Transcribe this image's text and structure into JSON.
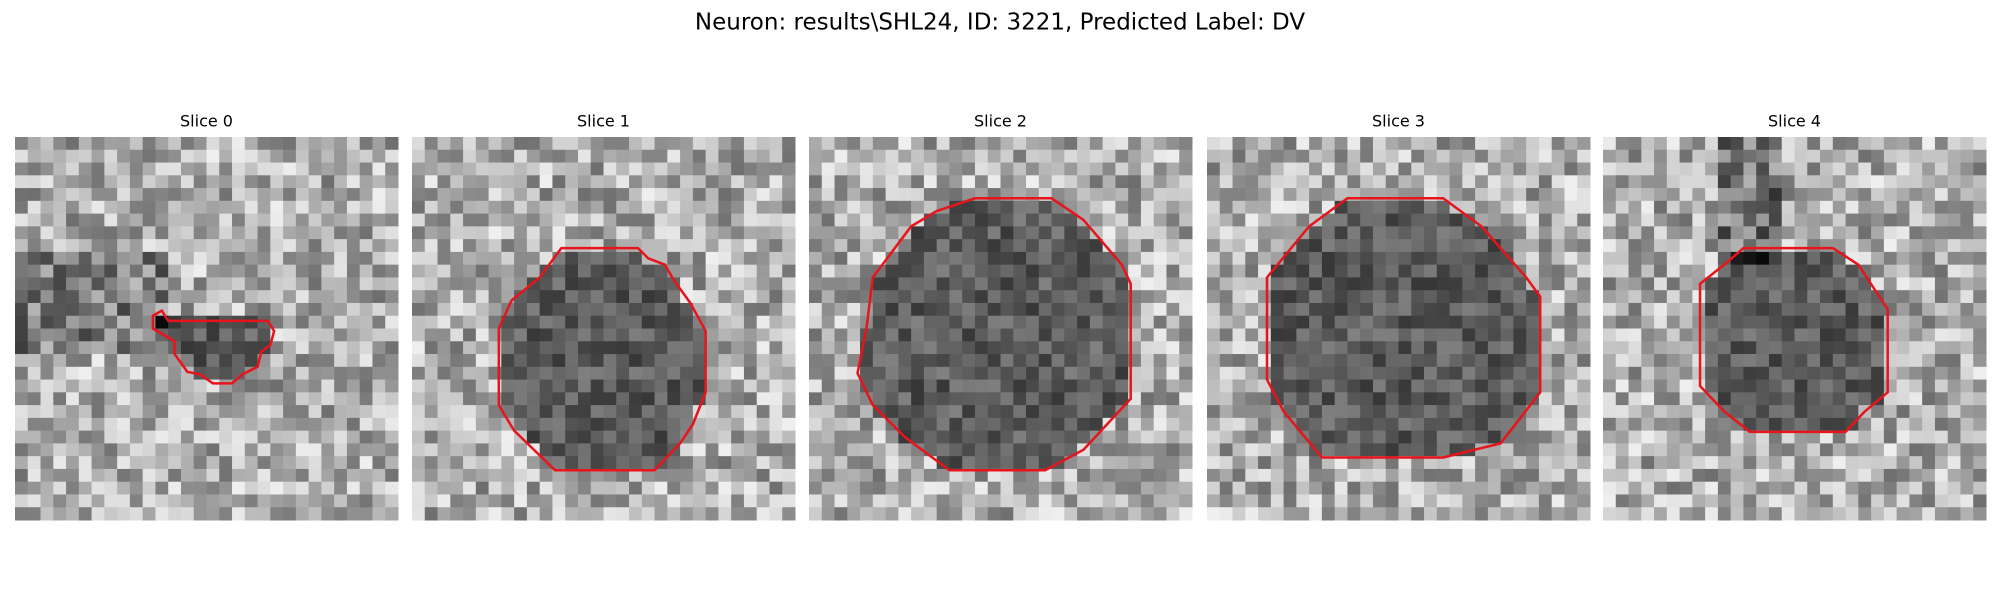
{
  "title": "Neuron: results\\SHL24, ID: 3221, Predicted Label: DV",
  "panels": [
    {
      "title": "Slice 0"
    },
    {
      "title": "Slice 1"
    },
    {
      "title": "Slice 2"
    },
    {
      "title": "Slice 3"
    },
    {
      "title": "Slice 4"
    }
  ]
}
